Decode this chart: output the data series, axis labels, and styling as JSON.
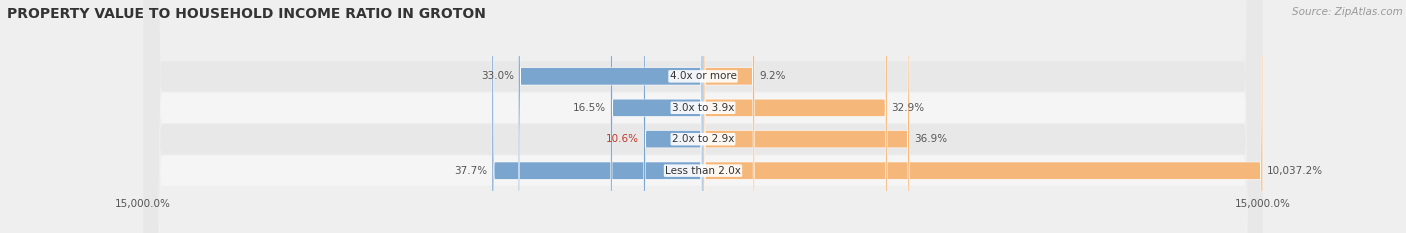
{
  "title": "PROPERTY VALUE TO HOUSEHOLD INCOME RATIO IN GROTON",
  "source": "Source: ZipAtlas.com",
  "categories": [
    "Less than 2.0x",
    "2.0x to 2.9x",
    "3.0x to 3.9x",
    "4.0x or more"
  ],
  "without_mortgage": [
    37.7,
    10.6,
    16.5,
    33.0
  ],
  "with_mortgage": [
    10037.2,
    36.9,
    32.9,
    9.2
  ],
  "without_mortgage_color": "#7aa5cf",
  "with_mortgage_color": "#f5b87a",
  "axis_limit": 15000,
  "axis_label_left": "15,000.0%",
  "axis_label_right": "15,000.0%",
  "background_color": "#efefef",
  "title_fontsize": 10,
  "source_fontsize": 7.5,
  "label_fontsize": 7.5,
  "bar_height": 0.55,
  "row_colors": [
    "#f5f5f5",
    "#e8e8e8",
    "#f5f5f5",
    "#e8e8e8"
  ]
}
